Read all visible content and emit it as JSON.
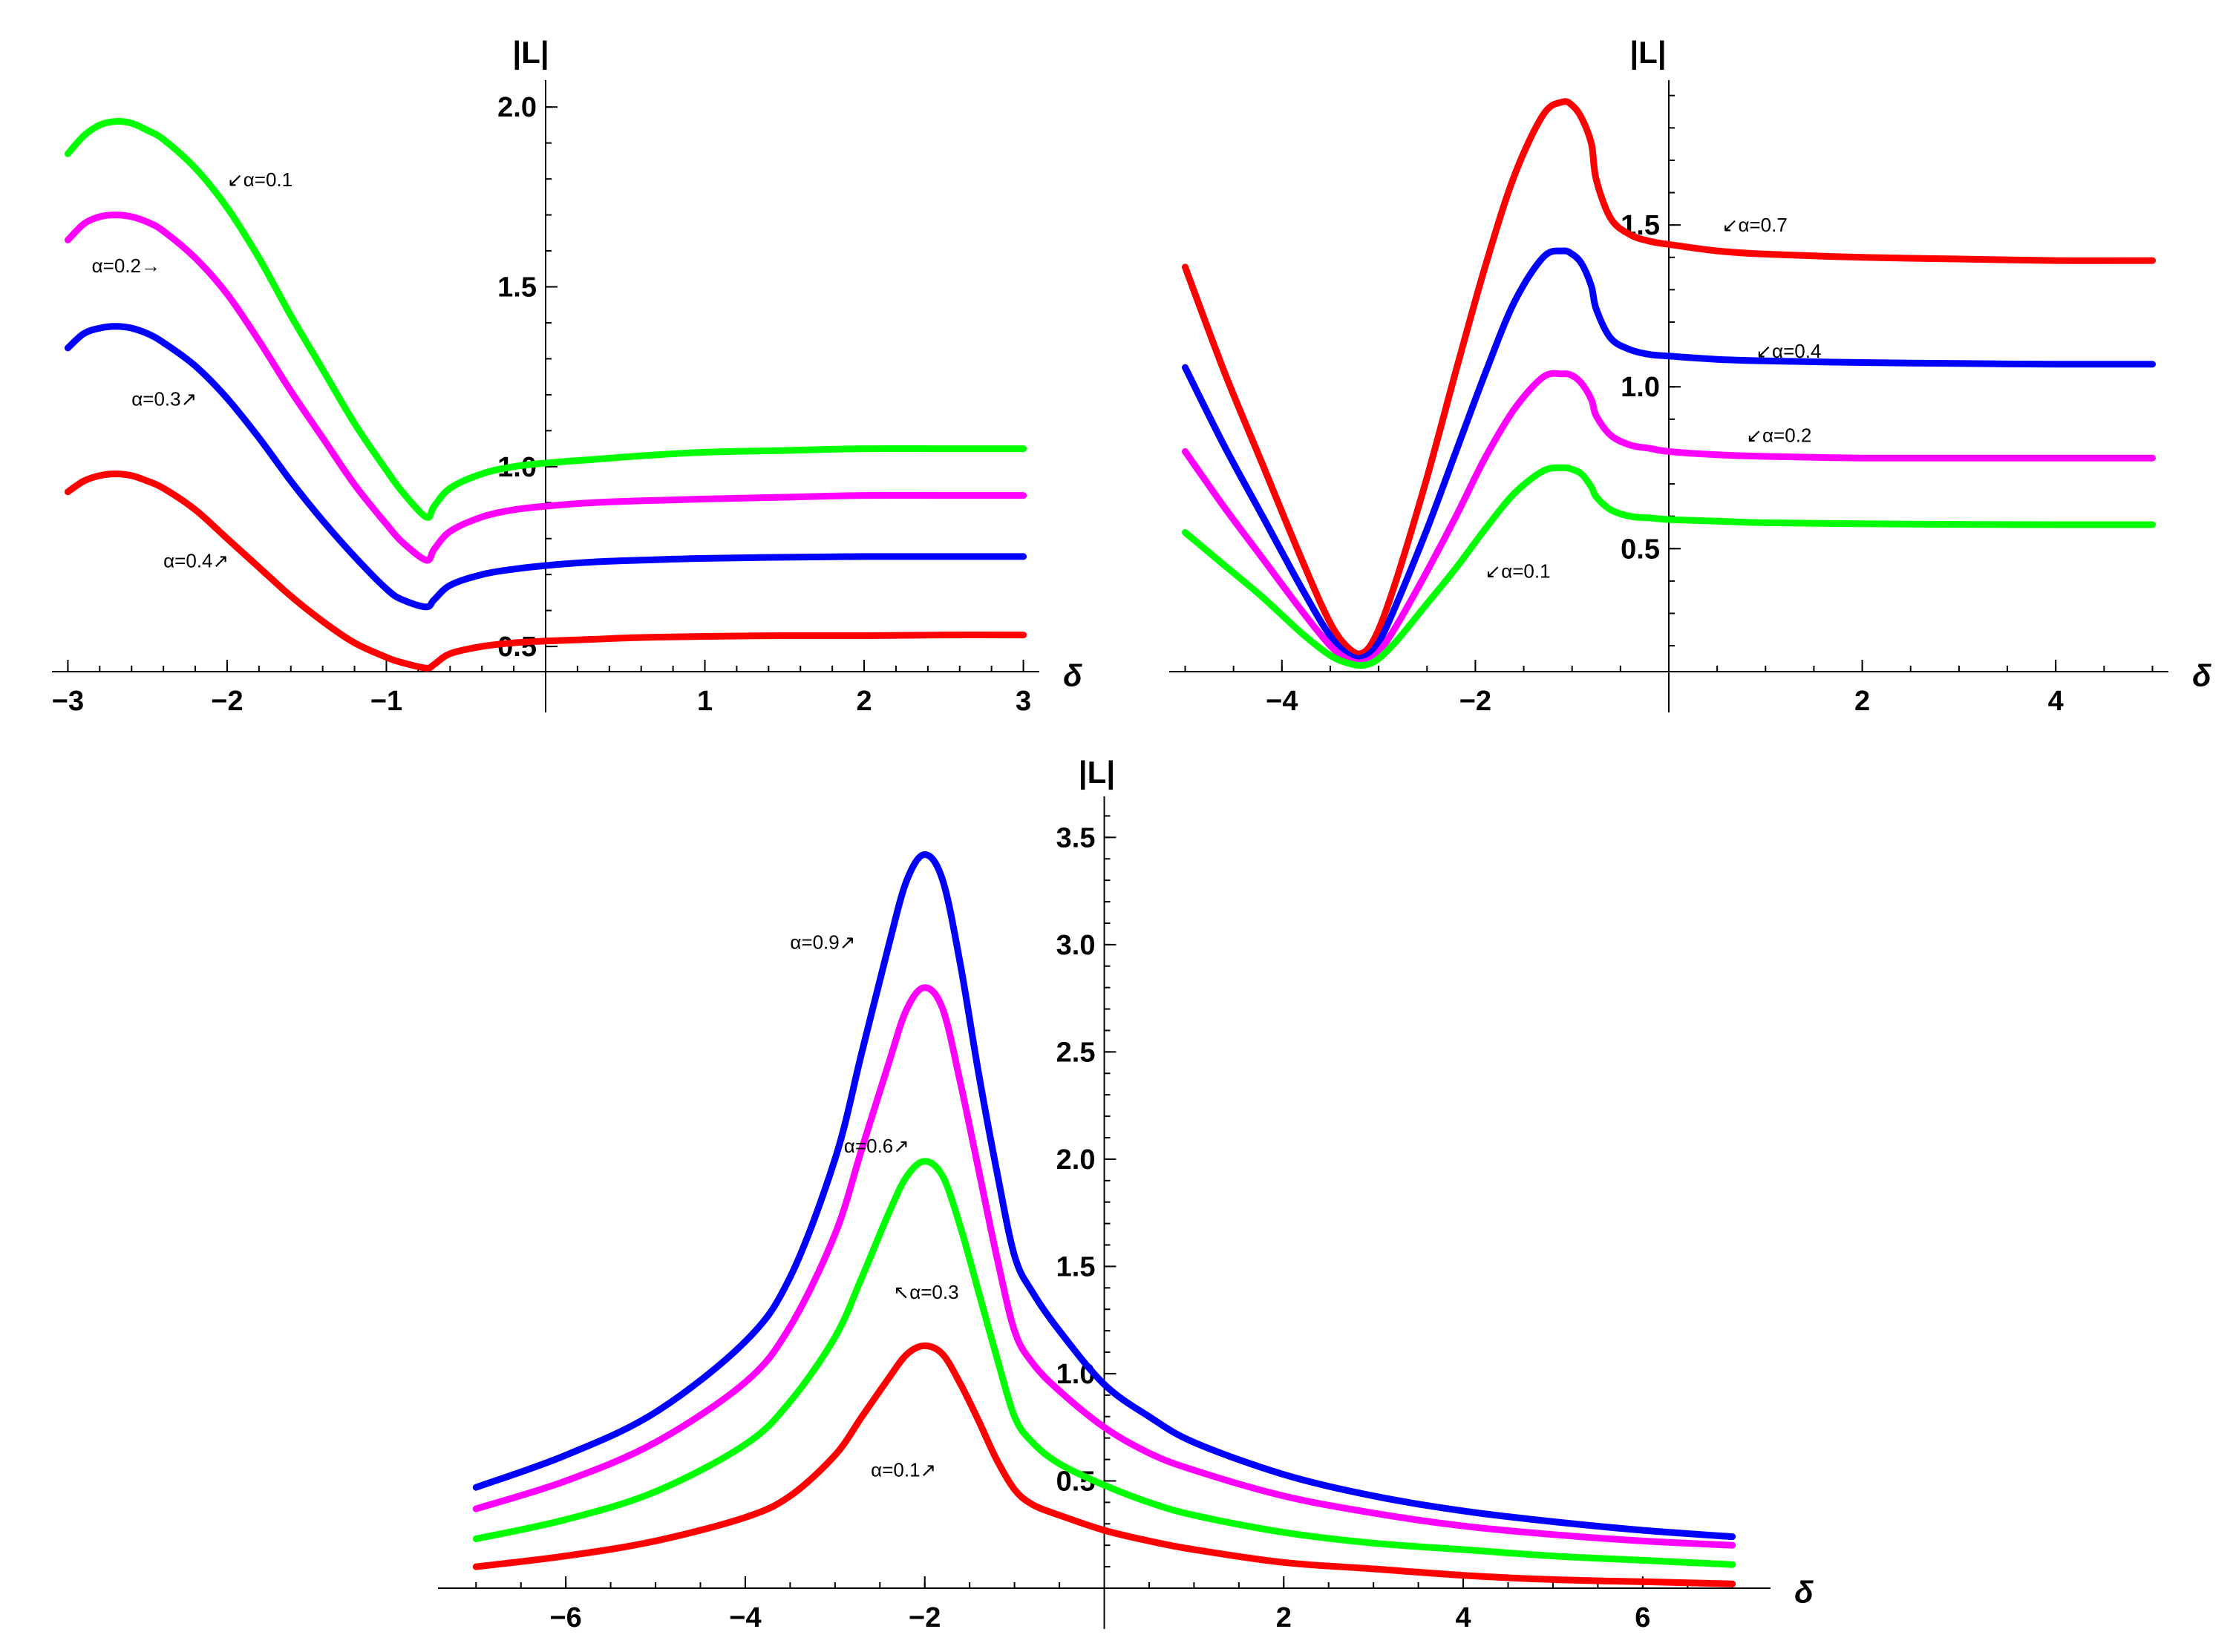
{
  "chart_data": [
    {
      "id": "top-left",
      "type": "line",
      "xlabel": "δ",
      "ylabel": "|L|",
      "xlim": [
        -3.03,
        3.03
      ],
      "ylim": [
        0.43,
        2.05
      ],
      "xticks": [
        -3,
        -2,
        -1,
        1,
        2,
        3
      ],
      "xtick_labels": [
        "−3",
        "−2",
        "−1",
        "1",
        "2",
        "3"
      ],
      "yticks": [
        0.5,
        1.0,
        1.5,
        2.0
      ],
      "ytick_labels": [
        "0.5",
        "1.0",
        "1.5",
        "2.0"
      ],
      "x": [
        -3.0,
        -2.9,
        -2.8,
        -2.7,
        -2.6,
        -2.5,
        -2.4,
        -2.2,
        -2.0,
        -1.8,
        -1.6,
        -1.4,
        -1.2,
        -1.0,
        -0.9,
        -0.75,
        -0.7,
        -0.6,
        -0.4,
        -0.2,
        0.0,
        0.3,
        0.6,
        1.0,
        1.5,
        2.0,
        2.5,
        3.0
      ],
      "series": [
        {
          "name": "α=0.1",
          "color": "#00ff00",
          "values": [
            1.87,
            1.92,
            1.95,
            1.96,
            1.955,
            1.935,
            1.91,
            1.83,
            1.72,
            1.58,
            1.42,
            1.27,
            1.12,
            0.99,
            0.93,
            0.86,
            0.89,
            0.94,
            0.98,
            1.0,
            1.01,
            1.02,
            1.03,
            1.04,
            1.045,
            1.05,
            1.05,
            1.05
          ]
        },
        {
          "name": "α=0.2",
          "color": "#ff00ff",
          "values": [
            1.63,
            1.675,
            1.695,
            1.7,
            1.695,
            1.68,
            1.655,
            1.58,
            1.48,
            1.35,
            1.21,
            1.08,
            0.95,
            0.84,
            0.79,
            0.74,
            0.77,
            0.82,
            0.86,
            0.88,
            0.89,
            0.9,
            0.905,
            0.91,
            0.915,
            0.92,
            0.92,
            0.92
          ]
        },
        {
          "name": "α=0.3",
          "color": "#0000ff",
          "values": [
            1.33,
            1.37,
            1.385,
            1.39,
            1.385,
            1.37,
            1.345,
            1.28,
            1.19,
            1.08,
            0.96,
            0.85,
            0.75,
            0.66,
            0.63,
            0.61,
            0.63,
            0.67,
            0.7,
            0.715,
            0.725,
            0.735,
            0.74,
            0.745,
            0.748,
            0.75,
            0.75,
            0.75
          ]
        },
        {
          "name": "α=0.4",
          "color": "#ff0000",
          "values": [
            0.93,
            0.96,
            0.975,
            0.98,
            0.975,
            0.96,
            0.94,
            0.88,
            0.8,
            0.72,
            0.64,
            0.57,
            0.51,
            0.47,
            0.455,
            0.44,
            0.45,
            0.48,
            0.5,
            0.51,
            0.515,
            0.52,
            0.525,
            0.528,
            0.53,
            0.53,
            0.532,
            0.532
          ]
        }
      ],
      "annotations": [
        {
          "text": "↙α=0.1",
          "x": -2.0,
          "y": 1.78
        },
        {
          "text": "α=0.2→",
          "x": -2.85,
          "y": 1.54
        },
        {
          "text": "α=0.3↗",
          "x": -2.6,
          "y": 1.17
        },
        {
          "text": "α=0.4↗",
          "x": -2.4,
          "y": 0.72
        }
      ]
    },
    {
      "id": "top-right",
      "type": "line",
      "xlabel": "δ",
      "ylabel": "|L|",
      "xlim": [
        -5.05,
        5.05
      ],
      "ylim": [
        0.12,
        1.92
      ],
      "xticks": [
        -4,
        -2,
        2,
        4
      ],
      "xtick_labels": [
        "−4",
        "−2",
        "2",
        "4"
      ],
      "yticks": [
        0.5,
        1.0,
        1.5
      ],
      "ytick_labels": [
        "0.5",
        "1.0",
        "1.5"
      ],
      "x": [
        -5.0,
        -4.6,
        -4.2,
        -3.8,
        -3.5,
        -3.3,
        -3.15,
        -3.0,
        -2.8,
        -2.5,
        -2.2,
        -1.9,
        -1.6,
        -1.3,
        -1.1,
        -1.0,
        -0.9,
        -0.8,
        -0.75,
        -0.6,
        -0.4,
        -0.2,
        0.0,
        0.5,
        1.0,
        2.0,
        3.0,
        4.0,
        5.0
      ],
      "series": [
        {
          "name": "α=0.7",
          "color": "#ff0000",
          "values": [
            1.37,
            1.05,
            0.76,
            0.47,
            0.27,
            0.19,
            0.18,
            0.25,
            0.42,
            0.72,
            1.05,
            1.37,
            1.65,
            1.84,
            1.88,
            1.87,
            1.83,
            1.75,
            1.64,
            1.52,
            1.47,
            1.45,
            1.44,
            1.42,
            1.41,
            1.4,
            1.395,
            1.39,
            1.39
          ]
        },
        {
          "name": "α=0.4",
          "color": "#0000ff",
          "values": [
            1.06,
            0.82,
            0.6,
            0.38,
            0.23,
            0.17,
            0.165,
            0.21,
            0.34,
            0.56,
            0.8,
            1.04,
            1.26,
            1.4,
            1.42,
            1.41,
            1.38,
            1.31,
            1.24,
            1.15,
            1.115,
            1.1,
            1.095,
            1.085,
            1.08,
            1.075,
            1.072,
            1.07,
            1.07
          ]
        },
        {
          "name": "α=0.2",
          "color": "#ff00ff",
          "values": [
            0.8,
            0.63,
            0.47,
            0.31,
            0.2,
            0.155,
            0.15,
            0.18,
            0.27,
            0.43,
            0.6,
            0.78,
            0.93,
            1.03,
            1.04,
            1.035,
            1.01,
            0.96,
            0.91,
            0.85,
            0.82,
            0.81,
            0.8,
            0.79,
            0.785,
            0.78,
            0.78,
            0.78,
            0.78
          ]
        },
        {
          "name": "α=0.1",
          "color": "#00ff00",
          "values": [
            0.55,
            0.45,
            0.35,
            0.24,
            0.17,
            0.145,
            0.14,
            0.16,
            0.22,
            0.33,
            0.44,
            0.56,
            0.67,
            0.74,
            0.75,
            0.745,
            0.73,
            0.69,
            0.66,
            0.62,
            0.6,
            0.595,
            0.59,
            0.585,
            0.58,
            0.577,
            0.575,
            0.574,
            0.574
          ]
        }
      ],
      "annotations": [
        {
          "text": "↙α=0.7",
          "x": 0.55,
          "y": 1.48
        },
        {
          "text": "↙α=0.4",
          "x": 0.9,
          "y": 1.09
        },
        {
          "text": "↙α=0.2",
          "x": 0.8,
          "y": 0.83
        },
        {
          "text": "↙α=0.1",
          "x": -1.9,
          "y": 0.41
        }
      ]
    },
    {
      "id": "bottom",
      "type": "line",
      "xlabel": "δ",
      "ylabel": "|L|",
      "xlim": [
        -7.3,
        7.3
      ],
      "ylim": [
        0.0,
        3.65
      ],
      "xticks": [
        -6,
        -4,
        -2,
        2,
        4,
        6
      ],
      "xtick_labels": [
        "−6",
        "−4",
        "−2",
        "2",
        "4",
        "6"
      ],
      "yticks": [
        0.5,
        1.0,
        1.5,
        2.0,
        2.5,
        3.0,
        3.5
      ],
      "ytick_labels": [
        "0.5",
        "1.0",
        "1.5",
        "2.0",
        "2.5",
        "3.0",
        "3.5"
      ],
      "x": [
        -7.0,
        -6.0,
        -5.0,
        -4.0,
        -3.5,
        -3.0,
        -2.7,
        -2.4,
        -2.2,
        -2.0,
        -1.8,
        -1.6,
        -1.4,
        -1.2,
        -1.0,
        -0.8,
        -0.5,
        0.0,
        0.5,
        1.0,
        2.0,
        3.0,
        4.0,
        5.0,
        6.0,
        7.0
      ],
      "series": [
        {
          "name": "α=0.9",
          "color": "#0000ff",
          "values": [
            0.47,
            0.62,
            0.82,
            1.15,
            1.45,
            2.0,
            2.5,
            3.0,
            3.3,
            3.42,
            3.3,
            2.9,
            2.4,
            1.95,
            1.55,
            1.38,
            1.2,
            0.95,
            0.8,
            0.68,
            0.53,
            0.43,
            0.36,
            0.31,
            0.27,
            0.24
          ]
        },
        {
          "name": "α=0.6",
          "color": "#ff00ff",
          "values": [
            0.37,
            0.5,
            0.68,
            0.96,
            1.22,
            1.65,
            2.05,
            2.45,
            2.7,
            2.8,
            2.7,
            2.35,
            1.95,
            1.55,
            1.2,
            1.05,
            0.92,
            0.75,
            0.63,
            0.55,
            0.43,
            0.35,
            0.29,
            0.25,
            0.22,
            0.2
          ]
        },
        {
          "name": "α=0.3",
          "color": "#00ff00",
          "values": [
            0.23,
            0.32,
            0.45,
            0.67,
            0.87,
            1.17,
            1.45,
            1.75,
            1.92,
            1.99,
            1.92,
            1.68,
            1.38,
            1.08,
            0.8,
            0.68,
            0.58,
            0.48,
            0.4,
            0.34,
            0.26,
            0.21,
            0.18,
            0.15,
            0.13,
            0.11
          ]
        },
        {
          "name": "α=0.1",
          "color": "#ff0000",
          "values": [
            0.1,
            0.15,
            0.22,
            0.33,
            0.43,
            0.62,
            0.8,
            0.98,
            1.09,
            1.13,
            1.09,
            0.95,
            0.78,
            0.6,
            0.46,
            0.39,
            0.34,
            0.27,
            0.22,
            0.18,
            0.12,
            0.09,
            0.06,
            0.04,
            0.03,
            0.02
          ]
        }
      ],
      "annotations": [
        {
          "text": "α=0.9↗",
          "x": -3.5,
          "y": 2.98
        },
        {
          "text": "α=0.6↗",
          "x": -2.9,
          "y": 2.03
        },
        {
          "text": "↖α=0.3",
          "x": -2.35,
          "y": 1.35
        },
        {
          "text": "α=0.1↗",
          "x": -2.6,
          "y": 0.52
        }
      ]
    }
  ]
}
